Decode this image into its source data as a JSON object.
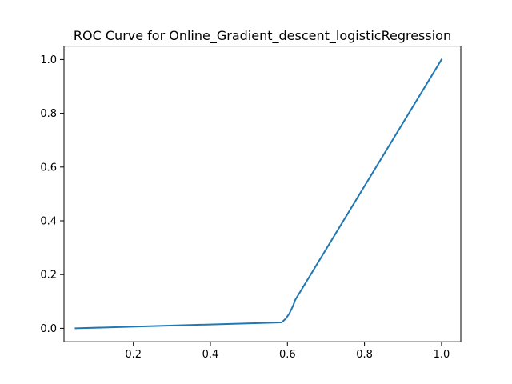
{
  "chart_data": {
    "type": "line",
    "title": "ROC Curve for Online_Gradient_descent_logisticRegression",
    "xlabel": "",
    "ylabel": "",
    "xlim": [
      0.02,
      1.05
    ],
    "ylim": [
      -0.05,
      1.05
    ],
    "x_ticks": [
      0.2,
      0.4,
      0.6,
      0.8,
      1.0
    ],
    "x_tick_labels": [
      "0.2",
      "0.4",
      "0.6",
      "0.8",
      "1.0"
    ],
    "y_ticks": [
      0.0,
      0.2,
      0.4,
      0.6,
      0.8,
      1.0
    ],
    "y_tick_labels": [
      "0.0",
      "0.2",
      "0.4",
      "0.6",
      "0.8",
      "1.0"
    ],
    "grid": false,
    "series": [
      {
        "color": "#1f77b4",
        "x": [
          0.05,
          0.585,
          0.595,
          0.605,
          0.61,
          0.615,
          0.62,
          1.0
        ],
        "y": [
          0.0,
          0.022,
          0.035,
          0.055,
          0.07,
          0.085,
          0.105,
          1.0
        ]
      }
    ]
  }
}
